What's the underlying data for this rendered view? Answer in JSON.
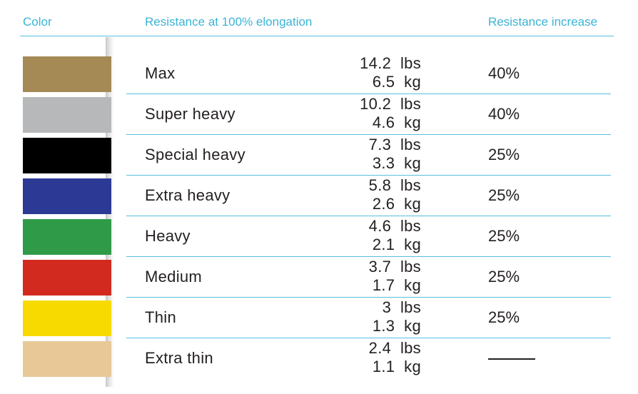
{
  "headers": {
    "color": "Color",
    "resistance": "Resistance at 100% elongation",
    "increase": "Resistance increase"
  },
  "rows": [
    {
      "color": "#a58a55",
      "name": "Max",
      "lbs": "14.2  lbs",
      "kg": "6.5  kg",
      "increase": "40%"
    },
    {
      "color": "#b7b8ba",
      "name": "Super heavy",
      "lbs": "10.2  lbs",
      "kg": "4.6  kg",
      "increase": "40%"
    },
    {
      "color": "#000000",
      "name": "Special heavy",
      "lbs": "7.3  lbs",
      "kg": "3.3  kg",
      "increase": "25%"
    },
    {
      "color": "#2c3a95",
      "name": "Extra heavy",
      "lbs": "5.8  lbs",
      "kg": "2.6  kg",
      "increase": "25%"
    },
    {
      "color": "#2f9b48",
      "name": "Heavy",
      "lbs": "4.6  lbs",
      "kg": "2.1  kg",
      "increase": "25%"
    },
    {
      "color": "#d22a1f",
      "name": "Medium",
      "lbs": "3.7  lbs",
      "kg": "1.7  kg",
      "increase": "25%"
    },
    {
      "color": "#f7db00",
      "name": "Thin",
      "lbs": "3  lbs",
      "kg": "1.3  kg",
      "increase": "25%"
    },
    {
      "color": "#e8c896",
      "name": "Extra thin",
      "lbs": "2.4  lbs",
      "kg": "1.1  kg",
      "increase": ""
    }
  ]
}
